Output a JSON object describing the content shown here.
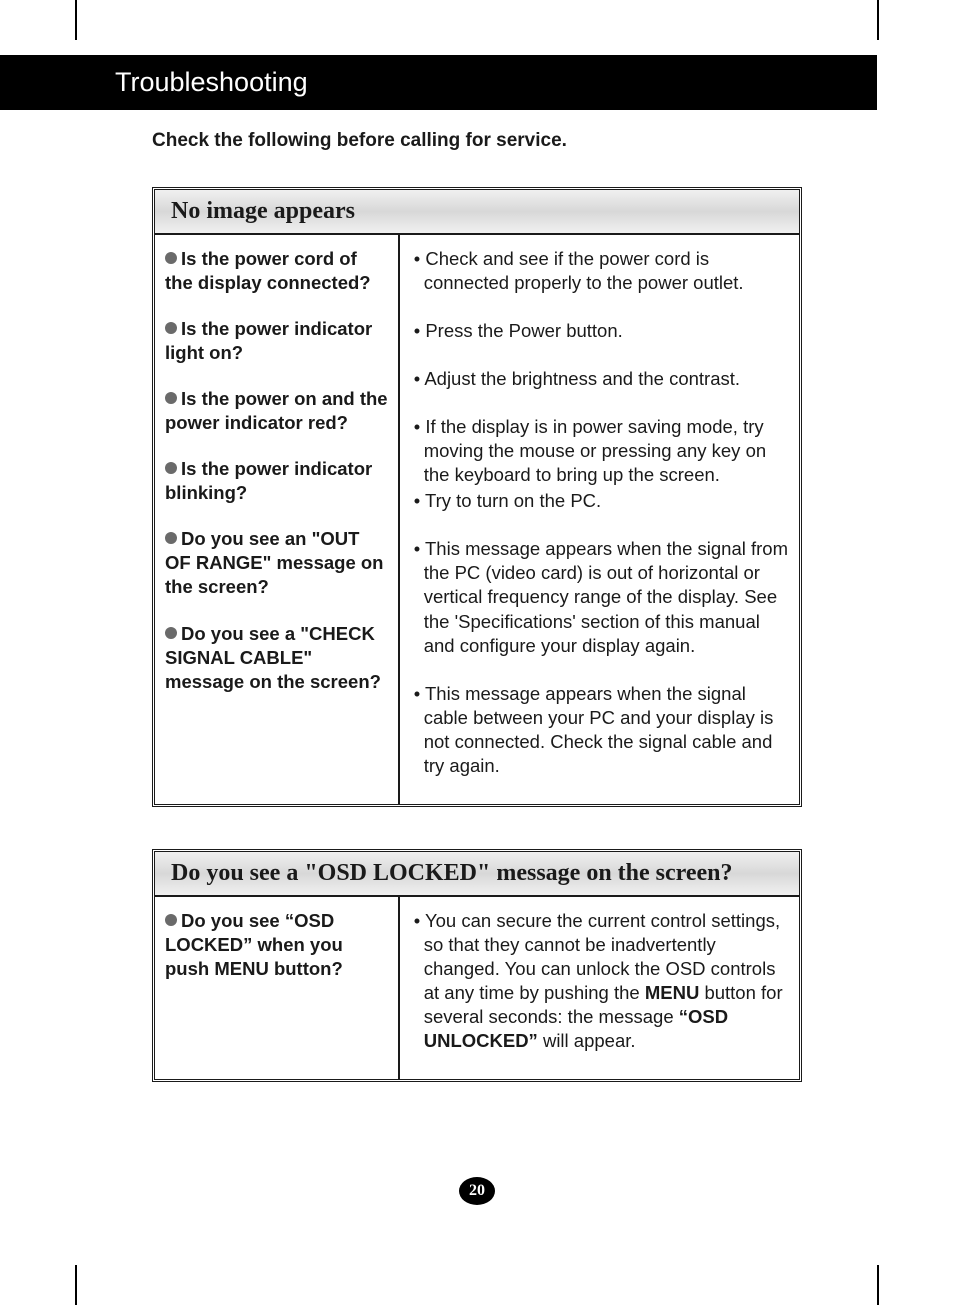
{
  "colors": {
    "page_bg": "#ffffff",
    "header_bg": "#000000",
    "header_text": "#ffffff",
    "body_text": "#1a1a1a",
    "box_border": "#1a1a1a",
    "bullet_fill": "#6a6a6a",
    "box_header_grad_start": "#f0f0f0",
    "box_header_grad_mid": "#d8d8d8"
  },
  "header": {
    "title": "Troubleshooting"
  },
  "subtitle": "Check the following before calling for service.",
  "boxes": [
    {
      "title": "No image appears",
      "rows": [
        {
          "question": "Is the power cord of the display connected?",
          "answers": [
            "• Check and see if the power cord is connected properly to the power outlet."
          ]
        },
        {
          "question": "Is the power indicator light on?",
          "answers": [
            "• Press the Power button."
          ]
        },
        {
          "question": "Is the power on and the power indicator red?",
          "answers": [
            "• Adjust the brightness and the contrast."
          ]
        },
        {
          "question": "Is the power indicator blinking?",
          "answers": [
            "• If the display is in power saving mode, try moving the mouse or pressing any key on the keyboard to bring up the screen.",
            "• Try to turn on the PC."
          ]
        },
        {
          "question": "Do you see an \"OUT OF RANGE\" message on the screen?",
          "answers": [
            "• This message appears when the signal from the PC (video card) is out of horizontal or vertical frequency range of the display. See the 'Specifications' section of this manual and configure your display again."
          ]
        },
        {
          "question": "Do you see a \"CHECK SIGNAL CABLE\" message on the screen?",
          "answers": [
            "• This message appears when the signal cable between your PC and your display is not connected. Check the signal cable and try again."
          ]
        }
      ]
    },
    {
      "title": "Do you see a \"OSD LOCKED\" message on the screen?",
      "rows": [
        {
          "question": "Do you see “OSD LOCKED” when you push MENU button?",
          "answers_html": "• You can secure the current control settings, so that they cannot be inadvertently changed. You can unlock the OSD controls at any time by pushing the <b>MENU</b> button for several seconds: the message <b>“OSD UNLOCKED”</b> will appear."
        }
      ]
    }
  ],
  "page_number": "20"
}
